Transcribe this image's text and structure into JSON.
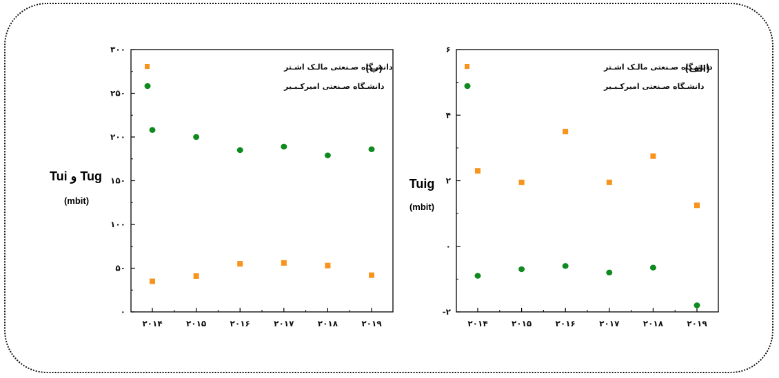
{
  "colors": {
    "orange": "#f7941d",
    "green": "#0f8a1e"
  },
  "chart_data": [
    {
      "type": "scatter",
      "panel_label": "(ب)",
      "ylabel_main": "Tui و Tug",
      "ylabel_unit": "(mbit)",
      "ylim": [
        0,
        300
      ],
      "yticks": [
        0,
        50,
        100,
        150,
        200,
        250,
        300
      ],
      "ytick_labels": [
        "۰",
        "۵۰",
        "۱۰۰",
        "۱۵۰",
        "۲۰۰",
        "۲۵۰",
        "۳۰۰"
      ],
      "categories": [
        "۲۰۱۴",
        "۲۰۱۵",
        "۲۰۱۶",
        "۲۰۱۷",
        "۲۰۱۸",
        "۲۰۱۹"
      ],
      "series": [
        {
          "name": "دانشـگاه صـنعتی مالـک اشـتر",
          "marker": "square",
          "color": "#f7941d",
          "values": [
            35,
            41,
            55,
            56,
            53,
            42
          ]
        },
        {
          "name": "دانشـگاه صـنعتی امیرکـبـیر",
          "marker": "circle",
          "color": "#0f8a1e",
          "values": [
            208,
            200,
            185,
            189,
            179,
            186
          ]
        }
      ],
      "legend_position": "top-left"
    },
    {
      "type": "scatter",
      "panel_label": "(الف)",
      "ylabel_main": "Tuig",
      "ylabel_unit": "(mbit)",
      "ylim": [
        -2,
        6
      ],
      "yticks": [
        -2,
        0,
        2,
        4,
        6
      ],
      "ytick_labels": [
        "-۲",
        "۰",
        "۲",
        "۴",
        "۶"
      ],
      "categories": [
        "۲۰۱۴",
        "۲۰۱۵",
        "۲۰۱۶",
        "۲۰۱۷",
        "۲۰۱۸",
        "۲۰۱۹"
      ],
      "series": [
        {
          "name": "دانشـگاه صـنعتی مالـک اشـتر",
          "marker": "square",
          "color": "#f7941d",
          "values": [
            2.3,
            1.95,
            3.5,
            1.95,
            2.75,
            1.25
          ]
        },
        {
          "name": "دانشـگاه صـنعتی امیرکـبـیر",
          "marker": "circle",
          "color": "#0f8a1e",
          "values": [
            -0.9,
            -0.7,
            -0.6,
            -0.8,
            -0.65,
            -1.8
          ]
        }
      ],
      "legend_position": "top-left"
    }
  ]
}
